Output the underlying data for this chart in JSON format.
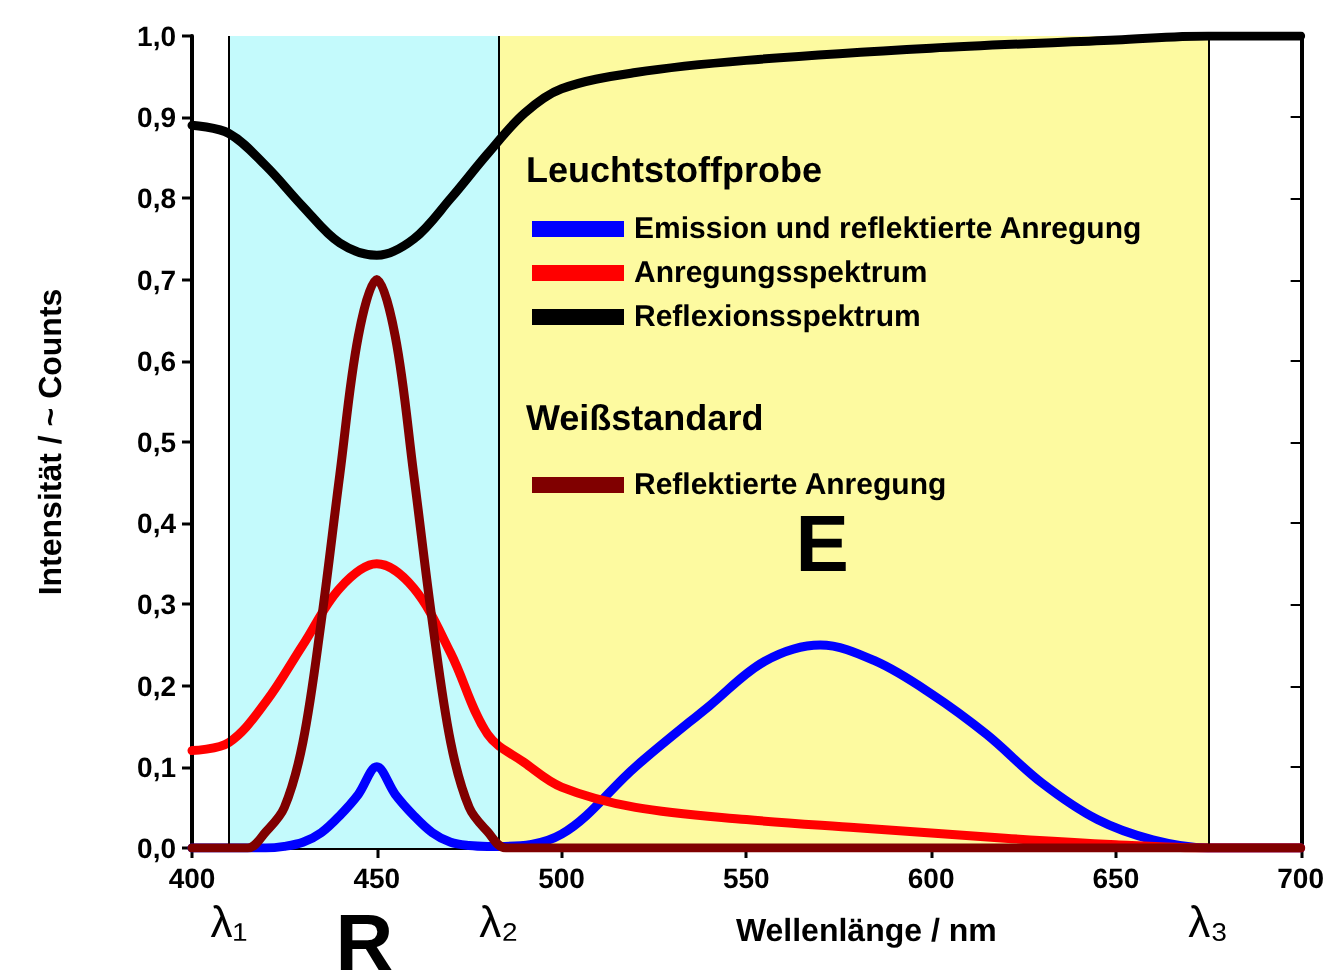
{
  "chart_data": {
    "type": "line",
    "xlabel": "Wellenlänge / nm",
    "ylabel": "Intensität / ~ Counts",
    "xlim": [
      400,
      700
    ],
    "xticks": [
      400,
      450,
      500,
      550,
      600,
      650,
      700
    ],
    "ylim": [
      0,
      1
    ],
    "yticks": [
      {
        "value": 0,
        "label": "0,0"
      },
      {
        "value": 0.1,
        "label": "0,1"
      },
      {
        "value": 0.2,
        "label": "0,2"
      },
      {
        "value": 0.3,
        "label": "0,3"
      },
      {
        "value": 0.4,
        "label": "0,4"
      },
      {
        "value": 0.5,
        "label": "0,5"
      },
      {
        "value": 0.6,
        "label": "0,6"
      },
      {
        "value": 0.7,
        "label": "0,7"
      },
      {
        "value": 0.8,
        "label": "0,8"
      },
      {
        "value": 0.9,
        "label": "0,9"
      },
      {
        "value": 1,
        "label": "1,0"
      }
    ],
    "grid": false,
    "legend": "top right",
    "marker": "none",
    "line_style": "solid",
    "series": [
      {
        "name": "Emission und reflektierte Anregung",
        "color": "#0000ff",
        "x": [
          400,
          420,
          425,
          430,
          435,
          440,
          445,
          450,
          455,
          460,
          465,
          470,
          475,
          480,
          483,
          500,
          520,
          540,
          555,
          570,
          585,
          600,
          615,
          630,
          645,
          660,
          675,
          700
        ],
        "values": [
          0,
          0,
          0.002,
          0.007,
          0.019,
          0.04,
          0.066,
          0.1,
          0.066,
          0.04,
          0.019,
          0.007,
          0.003,
          0.002,
          0.002,
          0.017,
          0.1,
          0.175,
          0.23,
          0.25,
          0.23,
          0.19,
          0.14,
          0.08,
          0.035,
          0.01,
          0,
          0
        ]
      },
      {
        "name": "Anregungsspektrum",
        "color": "#ff0000",
        "x": [
          400,
          410,
          420,
          430,
          440,
          450,
          460,
          470,
          480,
          490,
          500,
          520,
          550,
          580,
          620,
          650,
          675,
          700
        ],
        "values": [
          0.12,
          0.13,
          0.18,
          0.25,
          0.32,
          0.35,
          0.32,
          0.24,
          0.14,
          0.105,
          0.075,
          0.05,
          0.035,
          0.025,
          0.012,
          0.004,
          0,
          0
        ]
      },
      {
        "name": "Reflexionsspektrum",
        "color": "#000000",
        "x": [
          400,
          410,
          420,
          430,
          440,
          450,
          460,
          470,
          480,
          490,
          500,
          520,
          550,
          600,
          650,
          675,
          700
        ],
        "values": [
          0.89,
          0.88,
          0.84,
          0.79,
          0.745,
          0.73,
          0.75,
          0.8,
          0.855,
          0.905,
          0.935,
          0.955,
          0.97,
          0.985,
          0.995,
          1,
          1
        ]
      },
      {
        "name": "Reflektierte Anregung",
        "color": "#800000",
        "x": [
          400,
          415,
          420,
          425,
          430,
          435,
          440,
          445,
          450,
          455,
          460,
          465,
          470,
          475,
          480,
          485,
          700
        ],
        "values": [
          0,
          0,
          0.02,
          0.05,
          0.13,
          0.28,
          0.46,
          0.63,
          0.7,
          0.63,
          0.46,
          0.28,
          0.13,
          0.05,
          0.02,
          0,
          0
        ]
      }
    ],
    "bands": [
      {
        "axis": "x",
        "from": 410,
        "to": 483,
        "color": "#c4fafc"
      },
      {
        "axis": "x",
        "from": 483,
        "to": 675,
        "color": "#fdfaa0"
      }
    ],
    "ref_lines": [
      {
        "axis": "x",
        "value": 410,
        "label": "λ₁"
      },
      {
        "axis": "x",
        "value": 483,
        "label": "λ₂"
      },
      {
        "axis": "x",
        "value": 675,
        "label": "λ₃"
      }
    ],
    "annotations": [
      "Leuchtstoffprobe",
      "Weißstandard",
      "R",
      "E"
    ]
  }
}
